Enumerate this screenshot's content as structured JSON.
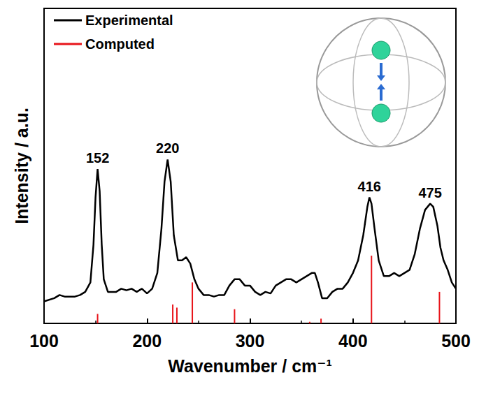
{
  "chart_data": {
    "type": "line",
    "x_label": "Wavenumber / cm⁻¹",
    "y_label": "Intensity / a.u.",
    "xlim": [
      100,
      500
    ],
    "xticks": [
      100,
      200,
      300,
      400,
      500
    ],
    "ylim": [
      0,
      1
    ],
    "tick_labels": "x",
    "grid": false,
    "legend": "upper left",
    "series": [
      {
        "name": "Experimental",
        "type": "line",
        "color": "#000000",
        "x": [
          100,
          110,
          115,
          120,
          130,
          135,
          140,
          145,
          148,
          150,
          152,
          154,
          156,
          158,
          162,
          170,
          175,
          180,
          185,
          190,
          195,
          200,
          205,
          210,
          214,
          217,
          220,
          223,
          226,
          230,
          234,
          238,
          242,
          246,
          250,
          255,
          260,
          265,
          270,
          275,
          280,
          285,
          290,
          295,
          300,
          305,
          310,
          315,
          320,
          325,
          330,
          335,
          340,
          345,
          350,
          355,
          360,
          363,
          366,
          370,
          375,
          380,
          385,
          390,
          395,
          400,
          405,
          410,
          414,
          416,
          418,
          421,
          425,
          430,
          435,
          440,
          445,
          450,
          455,
          460,
          465,
          470,
          475,
          478,
          482,
          485,
          488,
          492,
          496,
          500
        ],
        "values": [
          0.07,
          0.08,
          0.09,
          0.085,
          0.085,
          0.09,
          0.1,
          0.13,
          0.25,
          0.4,
          0.49,
          0.42,
          0.25,
          0.14,
          0.1,
          0.1,
          0.11,
          0.105,
          0.11,
          0.1,
          0.11,
          0.095,
          0.11,
          0.16,
          0.3,
          0.45,
          0.52,
          0.45,
          0.28,
          0.2,
          0.2,
          0.21,
          0.19,
          0.14,
          0.11,
          0.09,
          0.09,
          0.085,
          0.09,
          0.09,
          0.12,
          0.14,
          0.14,
          0.12,
          0.12,
          0.1,
          0.09,
          0.1,
          0.095,
          0.12,
          0.13,
          0.14,
          0.14,
          0.13,
          0.14,
          0.15,
          0.16,
          0.16,
          0.13,
          0.08,
          0.08,
          0.1,
          0.11,
          0.11,
          0.13,
          0.16,
          0.2,
          0.28,
          0.37,
          0.4,
          0.38,
          0.3,
          0.2,
          0.15,
          0.15,
          0.16,
          0.15,
          0.16,
          0.17,
          0.22,
          0.3,
          0.36,
          0.38,
          0.37,
          0.31,
          0.24,
          0.2,
          0.17,
          0.13,
          0.11
        ]
      },
      {
        "name": "Computed",
        "type": "bar",
        "color": "#e8141a",
        "x": [
          152,
          225,
          229,
          244,
          285,
          358,
          369,
          418,
          484
        ],
        "values": [
          0.03,
          0.06,
          0.05,
          0.13,
          0.045,
          0.005,
          0.015,
          0.215,
          0.1
        ]
      }
    ],
    "annotations": [
      {
        "text": "152",
        "x": 152,
        "y": 0.49
      },
      {
        "text": "220",
        "x": 220,
        "y": 0.52
      },
      {
        "text": "416",
        "x": 416,
        "y": 0.4
      },
      {
        "text": "475",
        "x": 475,
        "y": 0.38
      }
    ]
  }
}
